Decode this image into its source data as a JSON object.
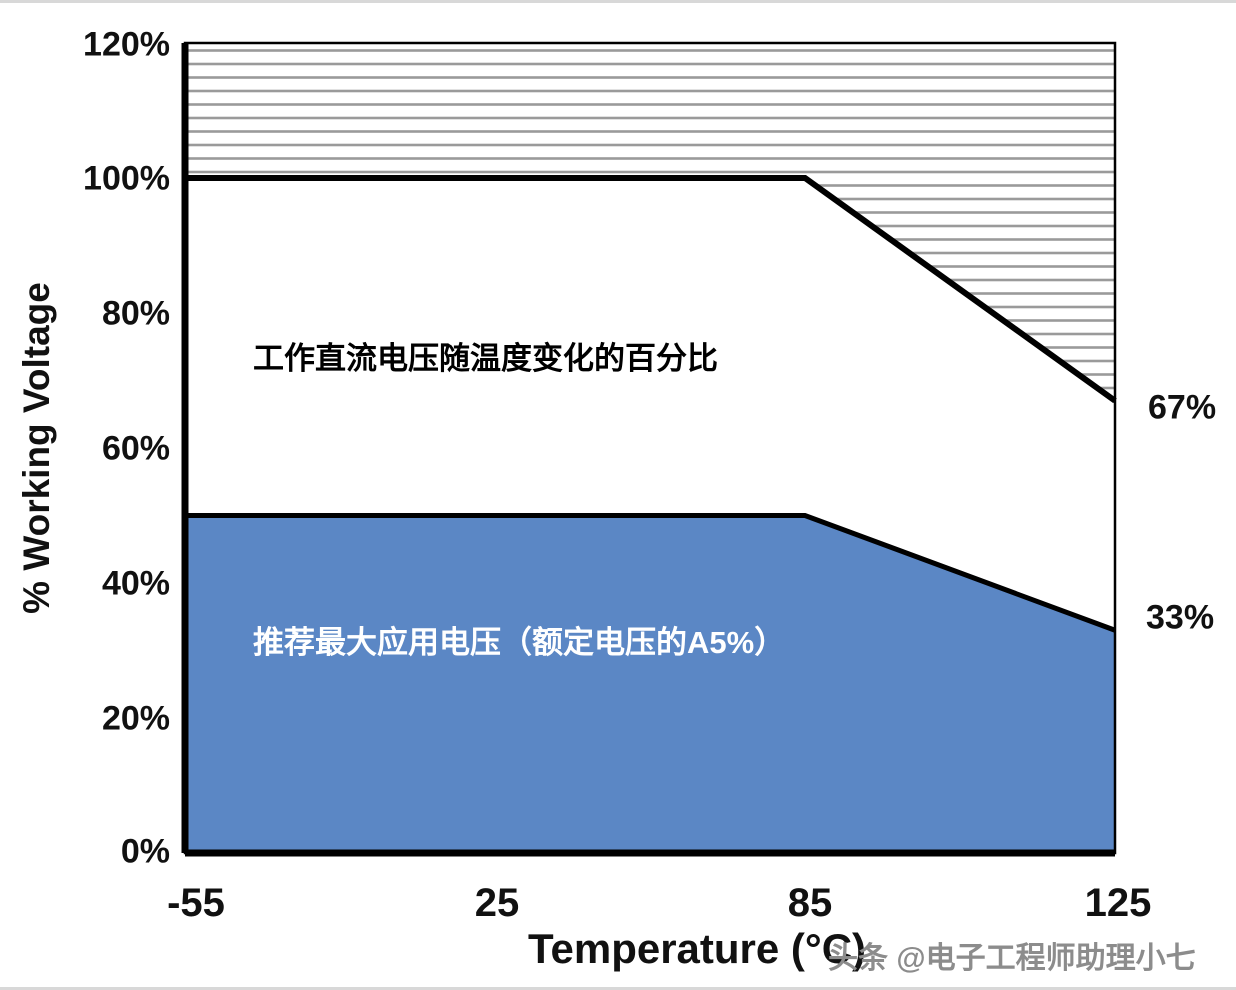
{
  "watermark": {
    "text": "头条 @电子工程师助理小七"
  },
  "chart_data": {
    "type": "area",
    "xlabel": "Temperature (°C)",
    "ylabel": "% Working Voltage",
    "x_ticks": [
      -55,
      25,
      85,
      125
    ],
    "x_tick_labels": [
      "-55",
      "25",
      "85",
      "125"
    ],
    "y_ticks": [
      0,
      20,
      40,
      60,
      80,
      100,
      120
    ],
    "y_tick_labels": [
      "0%",
      "20%",
      "40%",
      "60%",
      "80%",
      "100%",
      "120%"
    ],
    "ylim": [
      0,
      120
    ],
    "x_axis_layout": "equally-spaced-ticks",
    "grid": "off",
    "legend": "none",
    "series": [
      {
        "name": "工作直流电压随温度变化的百分比",
        "type": "line",
        "color": "#000000",
        "x": [
          -55,
          85,
          125
        ],
        "values": [
          100,
          100,
          67
        ]
      },
      {
        "name": "推荐最大应用电压（额定电压的A5%）",
        "type": "area",
        "fill_color": "#5b87c5",
        "line_color": "#000000",
        "x": [
          -55,
          85,
          125
        ],
        "values": [
          50,
          50,
          33
        ]
      }
    ],
    "hatched_region": {
      "location": "above-maximum-voltage-line",
      "pattern": "horizontal-stripes",
      "color": "#9a9a9a"
    },
    "annotations": [
      {
        "text": "工作直流电压随温度变化的百分比",
        "color": "#000000"
      },
      {
        "text": "推荐最大应用电压（额定电压的A5%）",
        "color": "#ffffff"
      }
    ],
    "end_labels": [
      {
        "text": "67%",
        "value": 67
      },
      {
        "text": "33%",
        "value": 33
      }
    ]
  }
}
